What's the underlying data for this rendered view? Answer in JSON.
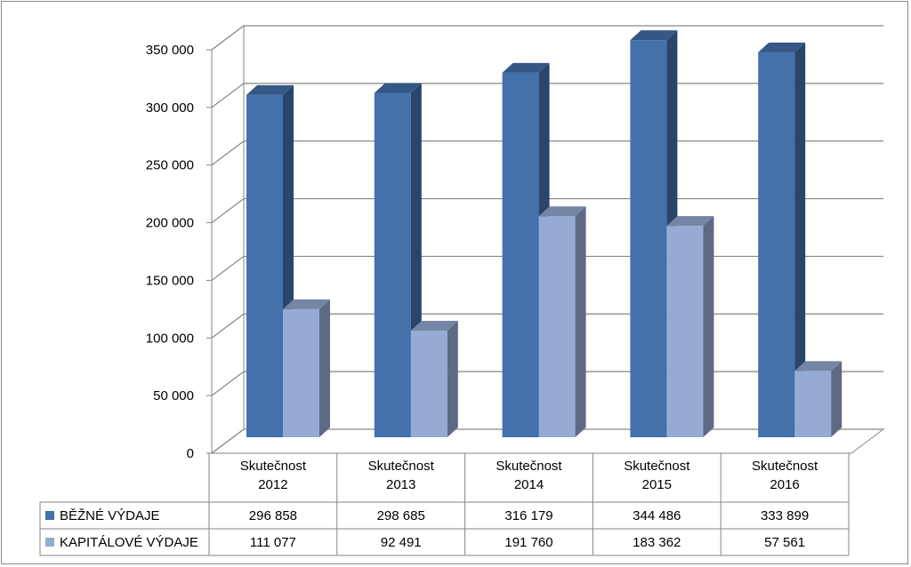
{
  "chart_data": {
    "type": "bar",
    "categories": [
      [
        "Skutečnost",
        "2012"
      ],
      [
        "Skutečnost",
        "2013"
      ],
      [
        "Skutečnost",
        "2014"
      ],
      [
        "Skutečnost",
        "2015"
      ],
      [
        "Skutečnost",
        "2016"
      ]
    ],
    "series": [
      {
        "name": "BĚŽNÉ VÝDAJE",
        "values": [
          296858,
          298685,
          316179,
          344486,
          333899
        ],
        "labels": [
          "296 858",
          "298 685",
          "316 179",
          "344 486",
          "333 899"
        ],
        "color": "#4470ab"
      },
      {
        "name": "KAPITÁLOVÉ VÝDAJE",
        "values": [
          111077,
          92491,
          191760,
          183362,
          57561
        ],
        "labels": [
          "111 077",
          "92 491",
          "191 760",
          "183 362",
          "57 561"
        ],
        "color": "#95abd4"
      }
    ],
    "yticks": [
      "0",
      "50 000",
      "100 000",
      "150 000",
      "200 000",
      "250 000",
      "300 000",
      "350 000"
    ],
    "ylim": [
      0,
      350000
    ],
    "grid": true,
    "three_d": true,
    "legend": "data-table"
  }
}
